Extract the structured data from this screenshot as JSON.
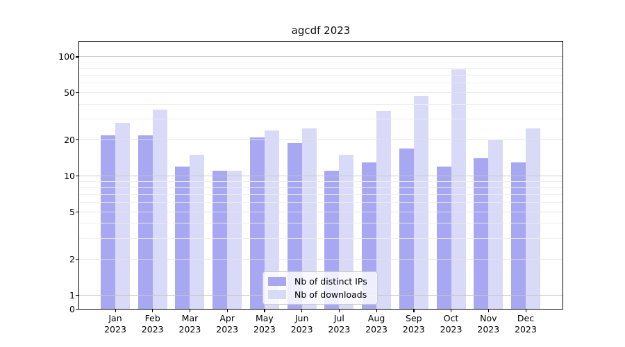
{
  "chart_data": {
    "type": "bar",
    "title": "agcdf 2023",
    "categories": [
      "Jan",
      "Feb",
      "Mar",
      "Apr",
      "May",
      "Jun",
      "Jul",
      "Aug",
      "Sep",
      "Oct",
      "Nov",
      "Dec"
    ],
    "year_label": "2023",
    "series": [
      {
        "name": "Nb of distinct IPs",
        "color": "#a8a8f2",
        "values": [
          22,
          22,
          12,
          11,
          21,
          19,
          11,
          13,
          17,
          12,
          14,
          13
        ]
      },
      {
        "name": "Nb of downloads",
        "color": "#d9d9f8",
        "values": [
          28,
          36,
          15,
          11,
          24,
          25,
          15,
          35,
          47,
          78,
          20,
          25
        ]
      }
    ],
    "xlabel": "",
    "ylabel": "",
    "yscale": "symlog",
    "yticks": [
      100,
      50,
      20,
      10,
      5,
      2,
      1,
      0
    ],
    "ylim": [
      0,
      133
    ],
    "grid": "horizontal major and minor gridlines drawn over bars",
    "legend_position": "lower center inside plot"
  }
}
